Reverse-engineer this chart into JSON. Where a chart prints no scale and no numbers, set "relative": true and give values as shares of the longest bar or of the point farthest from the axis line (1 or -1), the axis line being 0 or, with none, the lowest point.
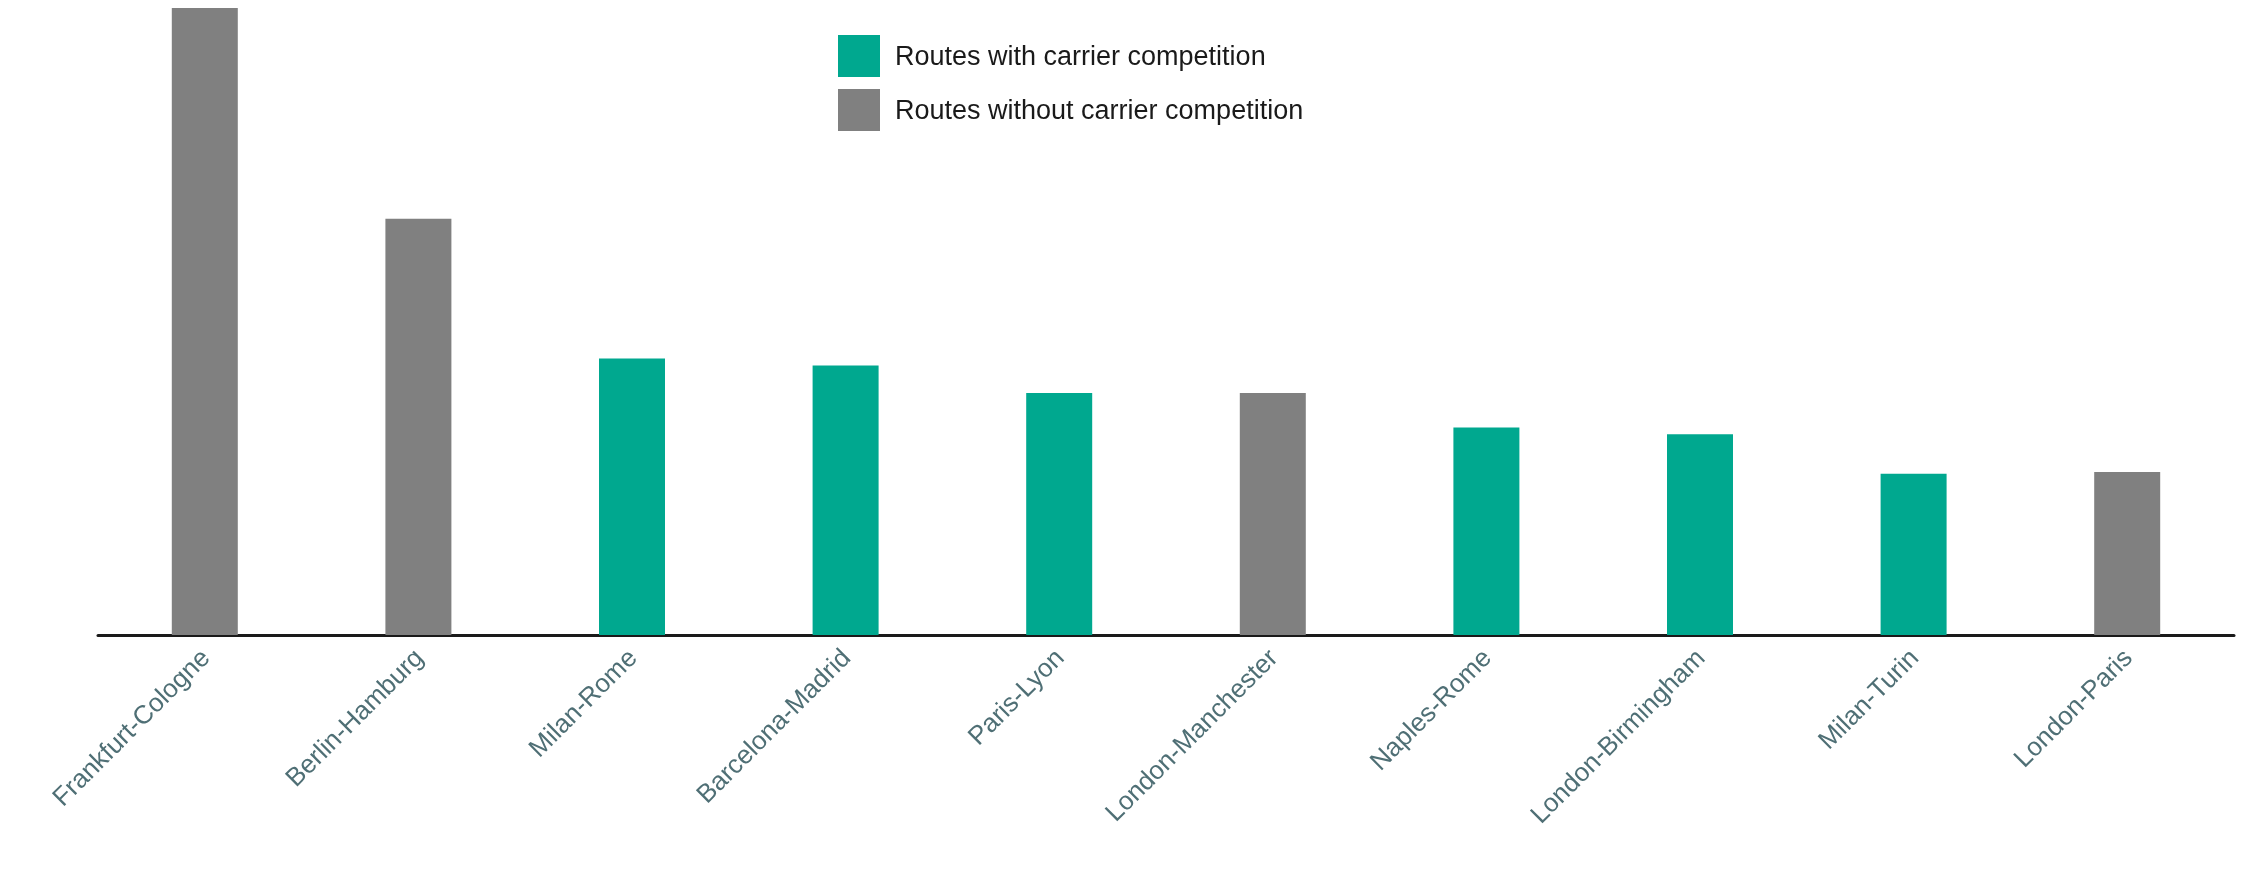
{
  "chart_data": {
    "type": "bar",
    "relative": true,
    "stacked": true,
    "legend": "top",
    "categories": [
      "Frankfurt-Cologne",
      "Berlin-Hamburg",
      "Milan-Rome",
      "Barcelona-Madrid",
      "Paris-Lyon",
      "London-Manchester",
      "Naples-Rome",
      "London-Birmingham",
      "Milan-Turin",
      "London-Paris"
    ],
    "series": [
      {
        "name": "Routes with carrier competition",
        "color": "#00a88f",
        "values": [
          null,
          null,
          0.441,
          0.43,
          0.386,
          null,
          0.331,
          0.32,
          0.257,
          null
        ]
      },
      {
        "name": "Routes without carrier competition",
        "color": "#808080",
        "values": [
          1,
          0.664,
          null,
          null,
          null,
          0.386,
          null,
          null,
          null,
          0.26
        ]
      }
    ]
  }
}
